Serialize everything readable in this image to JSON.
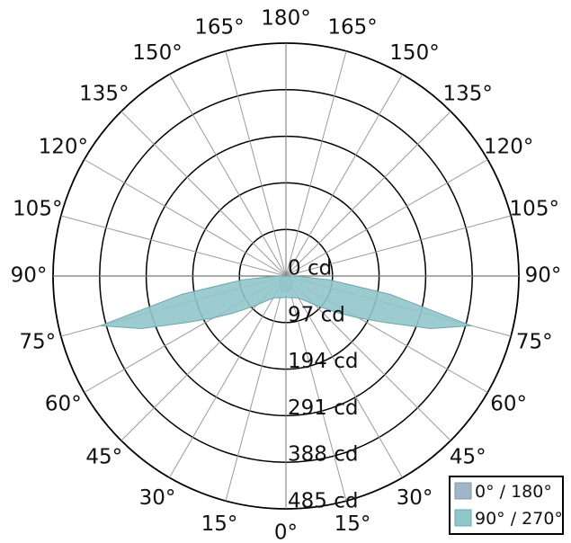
{
  "chart_data": {
    "type": "polar-area",
    "title": "",
    "unit": "cd",
    "angle_ticks_left": [
      "0°",
      "15°",
      "30°",
      "45°",
      "60°",
      "75°",
      "90°",
      "105°",
      "120°",
      "135°",
      "150°",
      "165°",
      "180°"
    ],
    "angle_ticks_right": [
      "15°",
      "30°",
      "45°",
      "60°",
      "75°",
      "90°",
      "105°",
      "120°",
      "135°",
      "150°",
      "165°"
    ],
    "radial_ticks": [
      {
        "value": 0,
        "label": "0 cd"
      },
      {
        "value": 97,
        "label": "97 cd"
      },
      {
        "value": 194,
        "label": "194 cd"
      },
      {
        "value": 291,
        "label": "291 cd"
      },
      {
        "value": 388,
        "label": "388 cd"
      },
      {
        "value": 485,
        "label": "485 cd"
      }
    ],
    "r_range": [
      0,
      485
    ],
    "grid": true,
    "legend_position": "bottom-right",
    "series": [
      {
        "name": "0° / 180°",
        "color": "#9fb6c8",
        "stroke": "#7f98ad",
        "angles": [
          0,
          5,
          10,
          15,
          20,
          25,
          30,
          35,
          40,
          45,
          50,
          55,
          60,
          65,
          70,
          75,
          80,
          85,
          90
        ],
        "values": [
          34,
          34,
          33,
          32,
          30,
          28,
          25,
          23,
          20,
          18,
          16,
          14,
          13,
          11,
          9,
          7,
          5,
          3,
          2
        ]
      },
      {
        "name": "90° / 270°",
        "color": "#91c7cb",
        "stroke": "#6ea7ad",
        "angles": [
          0,
          5,
          10,
          15,
          20,
          25,
          30,
          35,
          40,
          45,
          50,
          55,
          60,
          65,
          70,
          75,
          80,
          85,
          90
        ],
        "values": [
          44,
          45,
          46,
          47,
          48,
          50,
          54,
          60,
          70,
          85,
          105,
          135,
          175,
          230,
          320,
          400,
          220,
          90,
          20
        ]
      }
    ]
  },
  "legend": {
    "items": [
      {
        "label": "0° / 180°",
        "color": "#9fb6c8"
      },
      {
        "label": "90° / 270°",
        "color": "#91c7cb"
      }
    ]
  }
}
